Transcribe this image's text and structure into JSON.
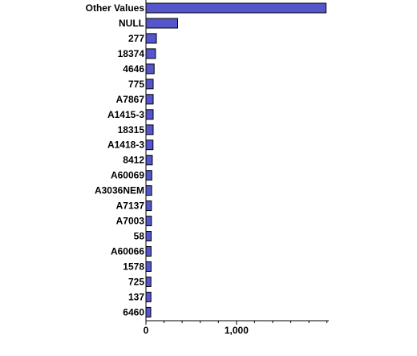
{
  "chart_data": {
    "type": "bar",
    "orientation": "horizontal",
    "title": "",
    "xlabel": "",
    "ylabel": "",
    "categories": [
      "Other Values",
      "NULL",
      "277",
      "18374",
      "4646",
      "775",
      "A7867",
      "A1415-3",
      "18315",
      "A1418-3",
      "8412",
      "A60069",
      "A3036NEM",
      "A7137",
      "A7003",
      "58",
      "A60066",
      "1578",
      "725",
      "137",
      "6460"
    ],
    "values": [
      1990,
      350,
      115,
      105,
      90,
      80,
      80,
      80,
      80,
      78,
      70,
      65,
      63,
      60,
      60,
      58,
      57,
      57,
      55,
      55,
      53
    ],
    "xlim": [
      0,
      2020
    ],
    "xticks": [
      0,
      1000
    ],
    "xtick_labels": [
      "0",
      "1,000"
    ],
    "minor_tick_step": 200,
    "grid": false,
    "legend": "none",
    "bar_color": "#5555cc"
  }
}
